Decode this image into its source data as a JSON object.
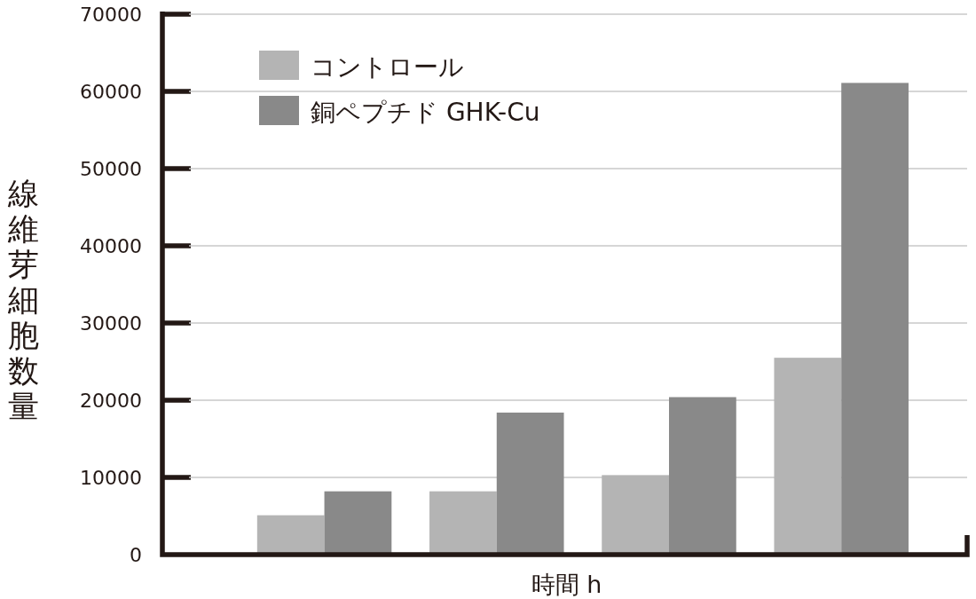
{
  "chart_data": {
    "type": "bar",
    "xlabel": "時間 h",
    "ylabel": "線維芽細胞数量",
    "categories": [
      null,
      null,
      null,
      null
    ],
    "series": [
      {
        "name": "コントロール",
        "color": "#b4b4b4",
        "values": [
          5100,
          8200,
          10300,
          25500
        ]
      },
      {
        "name": "銅ペプチド GHK-Cu",
        "color": "#898989",
        "values": [
          8200,
          18400,
          20400,
          61100
        ]
      }
    ],
    "ylim": [
      0,
      70000
    ],
    "yticks": [
      0,
      10000,
      20000,
      30000,
      40000,
      50000,
      60000,
      70000
    ],
    "grid": "y",
    "legend": "top left"
  }
}
